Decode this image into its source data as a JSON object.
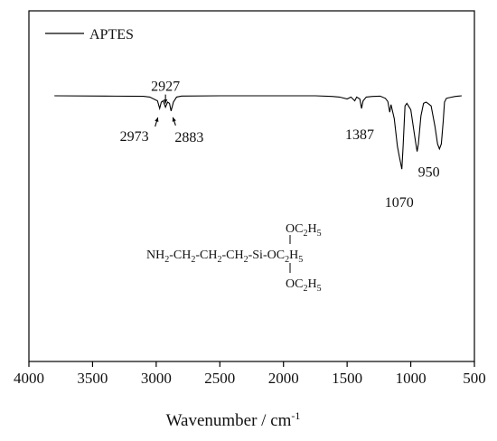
{
  "chart_data": {
    "type": "line",
    "title": "",
    "xlabel": "Wavenumber / cm",
    "xlabel_superscript": "-1",
    "ylabel": "",
    "xlim": [
      4000,
      500
    ],
    "x_reversed": true,
    "x_ticks": [
      4000,
      3500,
      3000,
      2500,
      2000,
      1500,
      1000,
      500
    ],
    "y_ticks_shown": false,
    "grid": false,
    "legend_position": "top-left",
    "series": [
      {
        "name": "APTES",
        "color": "#000000",
        "points": [
          [
            3800,
            100
          ],
          [
            3400,
            99.8
          ],
          [
            3100,
            99.6
          ],
          [
            3050,
            99
          ],
          [
            2990,
            96
          ],
          [
            2973,
            90
          ],
          [
            2960,
            95
          ],
          [
            2945,
            96
          ],
          [
            2927,
            91
          ],
          [
            2910,
            95
          ],
          [
            2895,
            94
          ],
          [
            2883,
            88
          ],
          [
            2865,
            95
          ],
          [
            2840,
            99
          ],
          [
            2800,
            99.8
          ],
          [
            2500,
            100
          ],
          [
            2000,
            100
          ],
          [
            1750,
            100
          ],
          [
            1620,
            99.5
          ],
          [
            1560,
            99
          ],
          [
            1500,
            97.5
          ],
          [
            1470,
            99
          ],
          [
            1440,
            96
          ],
          [
            1425,
            99
          ],
          [
            1400,
            97.5
          ],
          [
            1387,
            90
          ],
          [
            1375,
            96
          ],
          [
            1350,
            99
          ],
          [
            1300,
            99.5
          ],
          [
            1240,
            99.7
          ],
          [
            1200,
            98
          ],
          [
            1180,
            95.5
          ],
          [
            1165,
            87
          ],
          [
            1155,
            93
          ],
          [
            1130,
            82
          ],
          [
            1105,
            60
          ],
          [
            1090,
            52
          ],
          [
            1070,
            42
          ],
          [
            1060,
            60
          ],
          [
            1045,
            92
          ],
          [
            1030,
            94
          ],
          [
            1000,
            89
          ],
          [
            975,
            72
          ],
          [
            960,
            62
          ],
          [
            950,
            56
          ],
          [
            940,
            62
          ],
          [
            920,
            84
          ],
          [
            900,
            94
          ],
          [
            880,
            95
          ],
          [
            865,
            94
          ],
          [
            840,
            92
          ],
          [
            810,
            76
          ],
          [
            790,
            62
          ],
          [
            775,
            58
          ],
          [
            760,
            62
          ],
          [
            745,
            80
          ],
          [
            735,
            95
          ],
          [
            720,
            98
          ],
          [
            700,
            98.5
          ],
          [
            650,
            99.5
          ],
          [
            600,
            100
          ]
        ]
      }
    ],
    "annotations": [
      {
        "label": "2973",
        "x": 2973,
        "arrow": true
      },
      {
        "label": "2927",
        "x": 2927,
        "arrow": true
      },
      {
        "label": "2883",
        "x": 2883,
        "arrow": true
      },
      {
        "label": "1387",
        "x": 1387,
        "arrow": false
      },
      {
        "label": "1070",
        "x": 1070,
        "arrow": false
      },
      {
        "label": "950",
        "x": 950,
        "arrow": false
      }
    ],
    "structure_formula": {
      "main": [
        {
          "t": "NH"
        },
        {
          "s": "2"
        },
        {
          "t": "-CH"
        },
        {
          "s": "2"
        },
        {
          "t": "-CH"
        },
        {
          "s": "2"
        },
        {
          "t": "-CH"
        },
        {
          "s": "2"
        },
        {
          "t": "-Si-OC"
        },
        {
          "s": "2"
        },
        {
          "t": "H"
        },
        {
          "s": "5"
        }
      ],
      "top": [
        {
          "t": "OC"
        },
        {
          "s": "2"
        },
        {
          "t": "H"
        },
        {
          "s": "5"
        }
      ],
      "bottom": [
        {
          "t": "OC"
        },
        {
          "s": "2"
        },
        {
          "t": "H"
        },
        {
          "s": "5"
        }
      ]
    }
  }
}
